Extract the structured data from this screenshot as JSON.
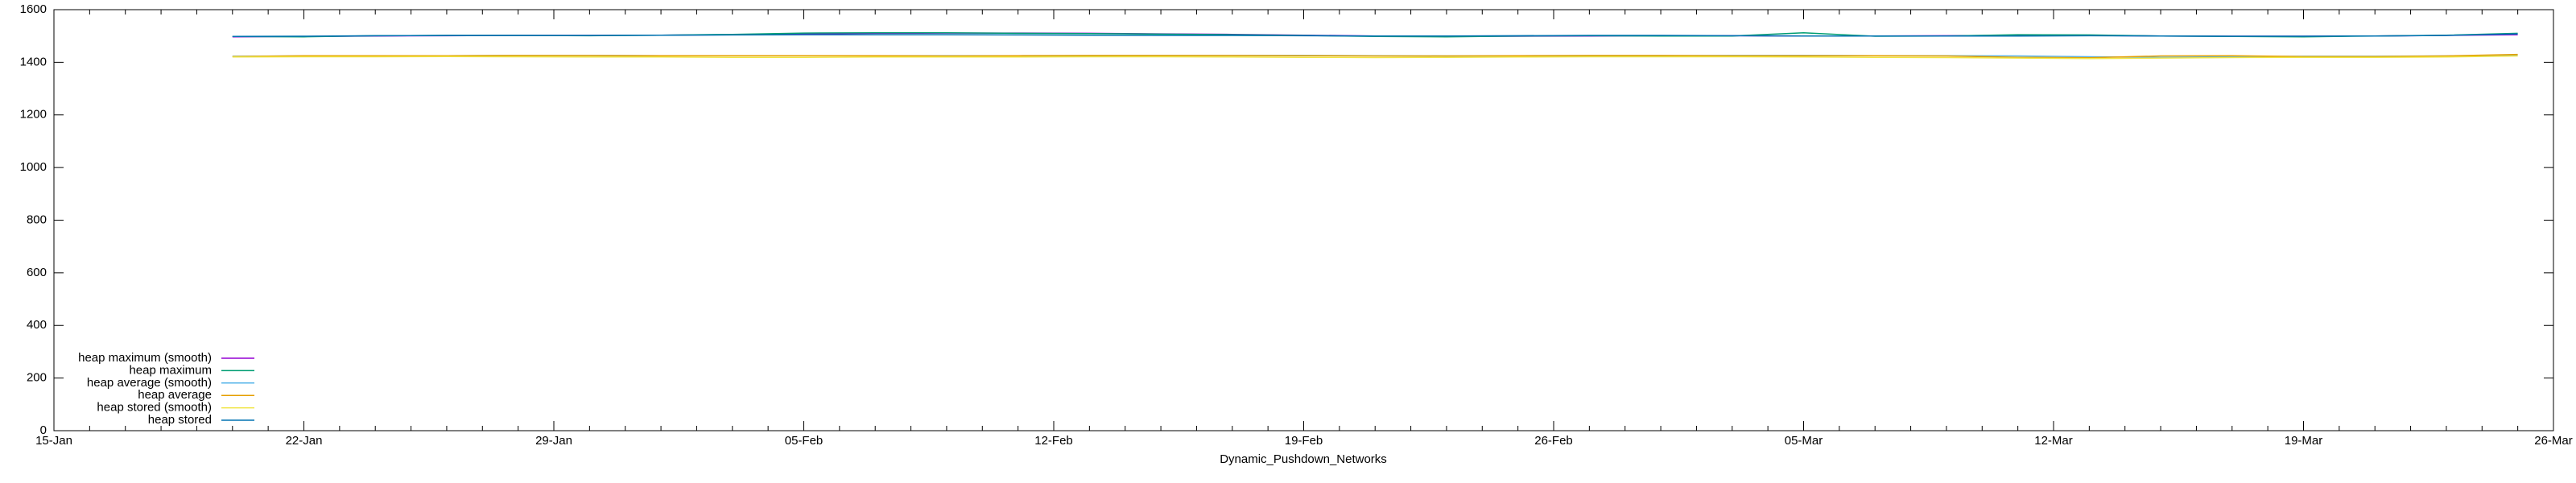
{
  "chart_data": {
    "type": "line",
    "xlabel": "Dynamic_Pushdown_Networks",
    "x": [
      "20-Jan",
      "22-Jan",
      "24-Jan",
      "26-Jan",
      "28-Jan",
      "30-Jan",
      "01-Feb",
      "03-Feb",
      "05-Feb",
      "07-Feb",
      "09-Feb",
      "11-Feb",
      "13-Feb",
      "15-Feb",
      "17-Feb",
      "19-Feb",
      "21-Feb",
      "23-Feb",
      "25-Feb",
      "27-Feb",
      "01-Mar",
      "03-Mar",
      "05-Mar",
      "07-Mar",
      "09-Mar",
      "11-Mar",
      "13-Mar",
      "15-Mar",
      "17-Mar",
      "19-Mar",
      "21-Mar",
      "23-Mar",
      "25-Mar"
    ],
    "xlim": [
      "15-Jan",
      "26-Mar"
    ],
    "xticks": [
      "15-Jan",
      "22-Jan",
      "29-Jan",
      "05-Feb",
      "12-Feb",
      "19-Feb",
      "26-Feb",
      "05-Mar",
      "12-Mar",
      "19-Mar",
      "26-Mar"
    ],
    "ylim": [
      0,
      1600
    ],
    "yticks": [
      0,
      200,
      400,
      600,
      800,
      1000,
      1200,
      1400,
      1600
    ],
    "grid": false,
    "legend": "bottom-left",
    "series": [
      {
        "name": "heap maximum (smooth)",
        "color": "#9400d3",
        "values": [
          1497,
          1498,
          1500,
          1501,
          1502,
          1502,
          1503,
          1505,
          1508,
          1510,
          1511,
          1511,
          1510,
          1508,
          1506,
          1503,
          1500,
          1499,
          1499,
          1500,
          1501,
          1501,
          1500,
          1500,
          1501,
          1502,
          1502,
          1500,
          1499,
          1499,
          1500,
          1502,
          1505
        ]
      },
      {
        "name": "heap maximum",
        "color": "#009e73",
        "values": [
          1498,
          1497,
          1501,
          1502,
          1502,
          1501,
          1503,
          1506,
          1511,
          1512,
          1512,
          1510,
          1509,
          1507,
          1505,
          1502,
          1498,
          1497,
          1500,
          1501,
          1500,
          1500,
          1512,
          1499,
          1500,
          1505,
          1504,
          1500,
          1498,
          1497,
          1500,
          1503,
          1510
        ]
      },
      {
        "name": "heap average (smooth)",
        "color": "#56b4e9",
        "values": [
          1423,
          1424,
          1425,
          1425,
          1426,
          1426,
          1425,
          1425,
          1425,
          1425,
          1425,
          1425,
          1425,
          1426,
          1426,
          1426,
          1425,
          1424,
          1424,
          1425,
          1425,
          1426,
          1426,
          1425,
          1425,
          1424,
          1421,
          1419,
          1421,
          1423,
          1423,
          1424,
          1428
        ]
      },
      {
        "name": "heap average",
        "color": "#e69f00",
        "values": [
          1422,
          1425,
          1425,
          1425,
          1426,
          1426,
          1425,
          1425,
          1425,
          1425,
          1424,
          1425,
          1426,
          1426,
          1426,
          1425,
          1424,
          1424,
          1425,
          1426,
          1426,
          1425,
          1425,
          1425,
          1424,
          1419,
          1417,
          1424,
          1425,
          1422,
          1422,
          1424,
          1430
        ]
      },
      {
        "name": "heap stored (smooth)",
        "color": "#f0e442",
        "values": [
          1420,
          1421,
          1421,
          1422,
          1421,
          1420,
          1420,
          1419,
          1419,
          1420,
          1420,
          1420,
          1421,
          1421,
          1420,
          1419,
          1418,
          1419,
          1420,
          1421,
          1421,
          1421,
          1420,
          1419,
          1418,
          1416,
          1414,
          1416,
          1418,
          1419,
          1419,
          1420,
          1424
        ]
      },
      {
        "name": "heap stored",
        "color": "#0072b2",
        "values": [
          1498,
          1499,
          1501,
          1502,
          1502,
          1502,
          1503,
          1504,
          1505,
          1505,
          1505,
          1504,
          1503,
          1502,
          1502,
          1501,
          1500,
          1500,
          1501,
          1502,
          1502,
          1501,
          1500,
          1500,
          1500,
          1500,
          1501,
          1500,
          1499,
          1499,
          1500,
          1502,
          1508
        ]
      }
    ]
  }
}
